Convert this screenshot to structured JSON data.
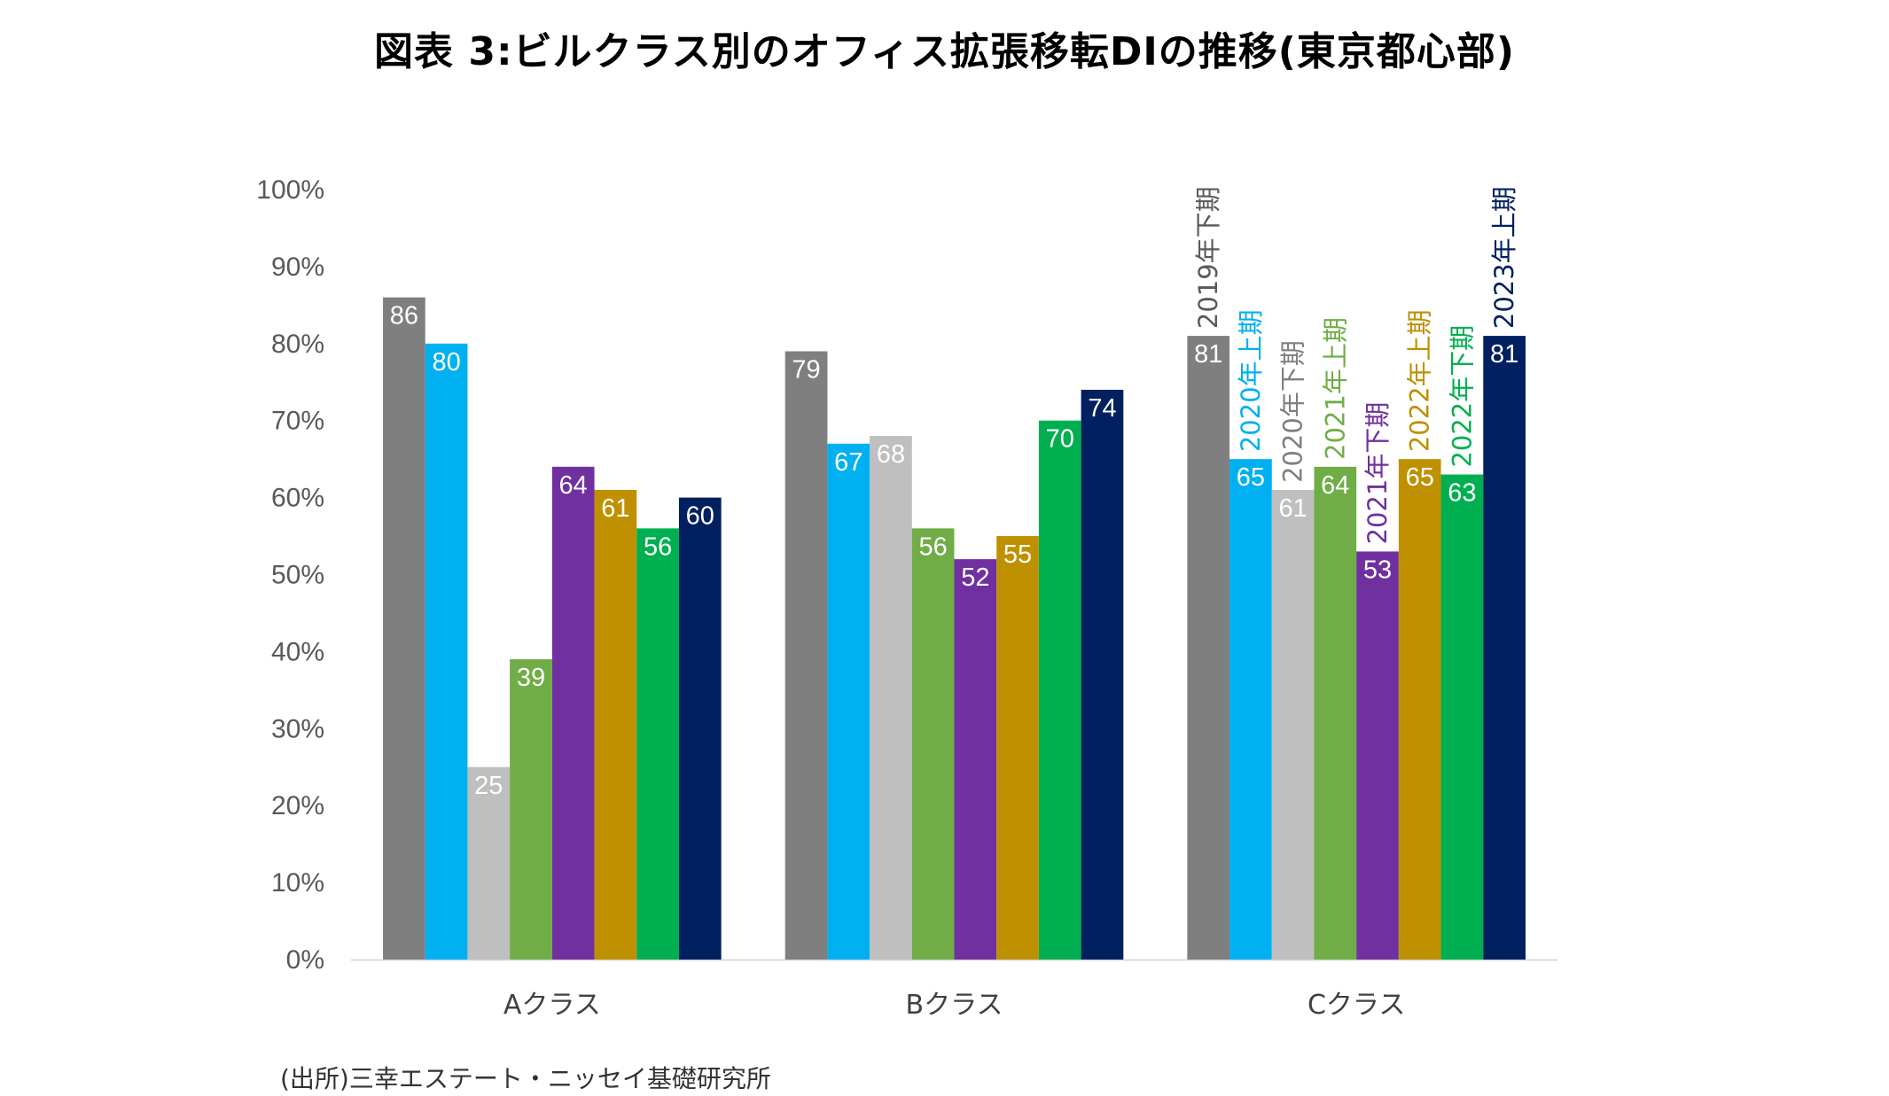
{
  "chart_data": {
    "type": "bar",
    "title": "図表 3:ビルクラス別のオフィス拡張移転DIの推移(東京都心部)",
    "source": "(出所)三幸エステート・ニッセイ基礎研究所",
    "xlabel": "",
    "ylabel": "",
    "ylim": [
      0,
      100
    ],
    "yticks": [
      "0%",
      "10%",
      "20%",
      "30%",
      "40%",
      "50%",
      "60%",
      "70%",
      "80%",
      "90%",
      "100%"
    ],
    "categories": [
      "Aクラス",
      "Bクラス",
      "Cクラス"
    ],
    "series": [
      {
        "name": "2019年下期",
        "color": "#7f7f7f",
        "label_color": "#595959",
        "values": [
          86,
          79,
          81
        ]
      },
      {
        "name": "2020年上期",
        "color": "#00b0f0",
        "label_color": "#00b0f0",
        "values": [
          80,
          67,
          65
        ]
      },
      {
        "name": "2020年下期",
        "color": "#bfbfbf",
        "label_color": "#7f7f7f",
        "values": [
          25,
          68,
          61
        ]
      },
      {
        "name": "2021年上期",
        "color": "#70ad47",
        "label_color": "#70ad47",
        "values": [
          39,
          56,
          64
        ]
      },
      {
        "name": "2021年下期",
        "color": "#7030a0",
        "label_color": "#7030a0",
        "values": [
          64,
          52,
          53
        ]
      },
      {
        "name": "2022年上期",
        "color": "#bf9000",
        "label_color": "#bf9000",
        "values": [
          61,
          55,
          65
        ]
      },
      {
        "name": "2022年下期",
        "color": "#00b050",
        "label_color": "#00b050",
        "values": [
          56,
          70,
          63
        ]
      },
      {
        "name": "2023年上期",
        "color": "#002060",
        "label_color": "#002060",
        "values": [
          60,
          74,
          81
        ]
      }
    ],
    "series_labels_on_category": "Cクラス",
    "grid": false,
    "legend": "none"
  }
}
